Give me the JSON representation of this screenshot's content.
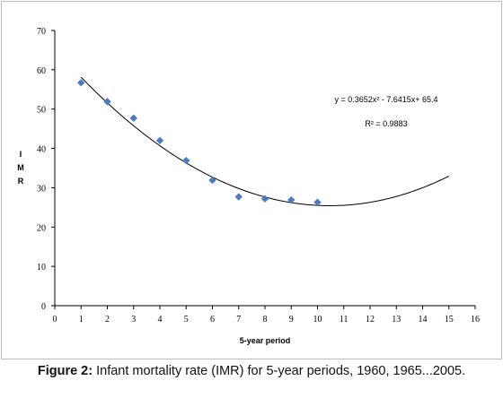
{
  "chart_data": {
    "type": "scatter",
    "title": "",
    "xlabel": "5-year period",
    "ylabel": "I M R",
    "xlim": [
      0,
      16
    ],
    "ylim": [
      0,
      70
    ],
    "xticks": [
      0,
      1,
      2,
      3,
      4,
      5,
      6,
      7,
      8,
      9,
      10,
      11,
      12,
      13,
      14,
      15,
      16
    ],
    "yticks": [
      0,
      10,
      20,
      30,
      40,
      50,
      60,
      70
    ],
    "grid": false,
    "marker_color": "#4a7bc4",
    "trendline_color": "#000000",
    "series": [
      {
        "x": [
          1,
          2,
          3,
          4,
          5,
          6,
          7,
          8,
          9,
          10
        ],
        "y": [
          56.7,
          51.9,
          47.7,
          42.0,
          36.9,
          31.9,
          27.7,
          27.2,
          26.9,
          26.3
        ]
      }
    ],
    "trendline": {
      "type": "polynomial",
      "degree": 2,
      "coefficients": [
        0.3652,
        -7.6415,
        65.4
      ],
      "x_range": [
        1,
        15
      ],
      "equation_label": "y = 0.3652x² - 7.6415x+ 65.4",
      "r2_label": "R² = 0.9883"
    }
  },
  "caption": {
    "label": "Figure 2:",
    "text": " Infant mortality rate (IMR) for 5-year periods, 1960, 1965...2005."
  }
}
